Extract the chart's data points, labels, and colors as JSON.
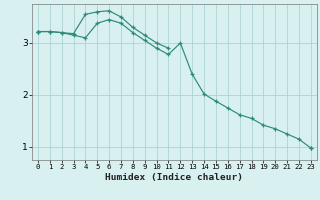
{
  "xlabel": "Humidex (Indice chaleur)",
  "background_color": "#d8f0f0",
  "grid_color": "#aed4d4",
  "line_color": "#2e8b7a",
  "x_values": [
    0,
    1,
    2,
    3,
    4,
    5,
    6,
    7,
    8,
    9,
    10,
    11,
    12,
    13,
    14,
    15,
    16,
    17,
    18,
    19,
    20,
    21,
    22,
    23
  ],
  "line1": [
    3.22,
    3.22,
    3.2,
    3.18,
    3.55,
    3.6,
    3.62,
    3.5,
    3.3,
    3.15,
    3.0,
    2.9,
    null,
    null,
    null,
    null,
    null,
    null,
    null,
    null,
    null,
    null,
    null,
    null
  ],
  "line2": [
    3.22,
    3.22,
    3.2,
    3.15,
    3.1,
    3.38,
    3.45,
    3.38,
    3.2,
    3.05,
    2.9,
    2.78,
    3.0,
    2.4,
    2.02,
    1.88,
    1.75,
    1.62,
    1.55,
    1.42,
    1.35,
    1.25,
    1.15,
    0.98
  ],
  "line3": [
    3.22,
    null,
    null,
    null,
    null,
    null,
    null,
    null,
    null,
    null,
    null,
    null,
    null,
    null,
    null,
    null,
    null,
    null,
    null,
    null,
    null,
    null,
    null,
    0.98
  ],
  "ylim": [
    0.75,
    3.75
  ],
  "xlim": [
    -0.5,
    23.5
  ],
  "yticks": [
    1,
    2,
    3
  ],
  "xticks": [
    0,
    1,
    2,
    3,
    4,
    5,
    6,
    7,
    8,
    9,
    10,
    11,
    12,
    13,
    14,
    15,
    16,
    17,
    18,
    19,
    20,
    21,
    22,
    23
  ],
  "marker": "+"
}
